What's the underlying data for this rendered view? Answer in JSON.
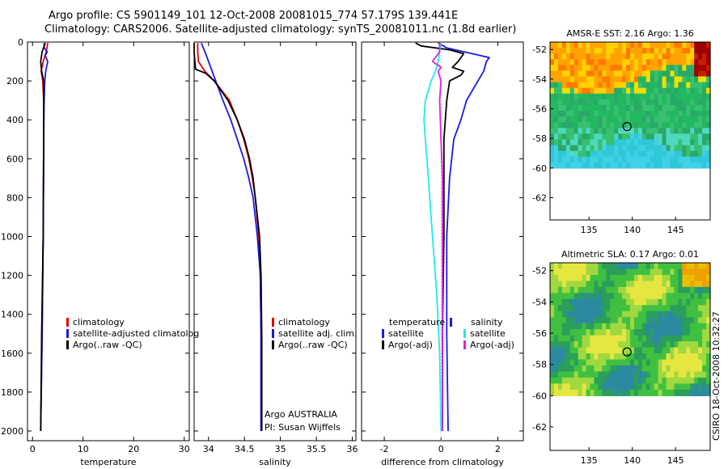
{
  "header": {
    "title_line1": "Argo profile: CS 5901149_101 12-Oct-2008 20081015_774 57.179S 139.441E",
    "title_line2": "Climatology: CARS2006. Satellite-adjusted climatology: synTS_20081011.nc (1.8d earlier)"
  },
  "colors": {
    "climatology": "#e60000",
    "satellite": "#1a1ae6",
    "argo": "#000000",
    "sal_satellite": "#22e8e8",
    "sal_argo": "#e020e0"
  },
  "footer": {
    "credit": "CSIRO 18-Oct-2008 10:32:27"
  },
  "chart_data": [
    {
      "id": "temperature",
      "type": "line",
      "xlabel": "temperature",
      "xlim": [
        -1,
        31
      ],
      "xticks": [
        "0",
        "10",
        "20",
        "30"
      ],
      "ylim": [
        2050,
        0
      ],
      "yticks": [
        "0",
        "200",
        "400",
        "600",
        "800",
        "1000",
        "1200",
        "1400",
        "1600",
        "1800",
        "2000"
      ],
      "legend": [
        "climatology",
        "satellite-adjusted climatolog",
        "Argo(..raw -QC)"
      ],
      "series": [
        {
          "name": "climatology",
          "depth": [
            5,
            50,
            100,
            150,
            200,
            300,
            500,
            1000,
            1500,
            2000
          ],
          "values": [
            3.0,
            2.7,
            2.1,
            1.7,
            2.0,
            2.2,
            2.2,
            2.1,
            1.9,
            1.6
          ]
        },
        {
          "name": "satellite-adjusted climatolog",
          "depth": [
            5,
            30,
            50,
            70,
            100,
            150,
            200,
            300,
            500,
            1000,
            1500,
            2000
          ],
          "values": [
            2.3,
            2.3,
            2.9,
            2.5,
            3.0,
            2.6,
            2.4,
            2.3,
            2.2,
            2.1,
            1.9,
            1.6
          ]
        },
        {
          "name": "Argo(..raw -QC)",
          "depth": [
            5,
            50,
            100,
            150,
            200,
            300,
            500,
            1000,
            1500,
            2000
          ],
          "values": [
            2.5,
            1.9,
            1.6,
            1.8,
            2.2,
            2.2,
            2.2,
            2.1,
            1.8,
            1.6
          ]
        }
      ]
    },
    {
      "id": "salinity",
      "type": "line",
      "xlabel": "salinity",
      "xlim": [
        33.8,
        36.05
      ],
      "xticks": [
        "34",
        "34.5",
        "35",
        "35.5",
        "36"
      ],
      "ylim": [
        2050,
        0
      ],
      "legend": [
        "climatology",
        "satellite adj. clim.",
        "Argo(..raw -QC)"
      ],
      "annotations": [
        "Argo AUSTRALIA",
        "PI: Susan Wijffels"
      ],
      "series": [
        {
          "name": "climatology",
          "depth": [
            5,
            50,
            100,
            150,
            200,
            300,
            400,
            500,
            600,
            700,
            800,
            1000,
            1200,
            1500,
            2000
          ],
          "values": [
            33.85,
            33.85,
            33.86,
            33.95,
            34.08,
            34.29,
            34.4,
            34.49,
            34.56,
            34.61,
            34.65,
            34.7,
            34.72,
            34.73,
            34.73
          ]
        },
        {
          "name": "satellite adj. clim.",
          "depth": [
            5,
            50,
            100,
            150,
            200,
            300,
            400,
            500,
            600,
            700,
            800,
            1000,
            1200,
            1500,
            2000
          ],
          "values": [
            33.9,
            33.95,
            34.0,
            34.05,
            34.1,
            34.2,
            34.31,
            34.4,
            34.49,
            34.56,
            34.62,
            34.68,
            34.72,
            34.73,
            34.73
          ]
        },
        {
          "name": "Argo(..raw -QC)",
          "depth": [
            5,
            50,
            100,
            140,
            160,
            200,
            300,
            400,
            500,
            600,
            700,
            800,
            1000,
            1200,
            1500,
            2000
          ],
          "values": [
            33.8,
            33.8,
            33.81,
            33.82,
            33.96,
            34.08,
            34.27,
            34.4,
            34.5,
            34.57,
            34.62,
            34.65,
            34.71,
            34.73,
            34.74,
            34.74
          ]
        }
      ]
    },
    {
      "id": "difference",
      "type": "line",
      "xlabel": "difference from climatology",
      "xlim": [
        -2.8,
        2.9
      ],
      "xticks": [
        "-2",
        "0",
        "2"
      ],
      "ylim": [
        2050,
        0
      ],
      "legend_left_title": "temperature",
      "legend_right_title": "salinity",
      "legend": [
        "satellite",
        "Argo(-adj)",
        "satellite",
        "Argo(-adj)"
      ],
      "series": [
        {
          "name": "temperature satellite",
          "depth": [
            5,
            30,
            60,
            80,
            100,
            150,
            200,
            300,
            400,
            500,
            700,
            1000,
            1500,
            2000
          ],
          "values": [
            -0.1,
            0.2,
            1.1,
            1.7,
            1.6,
            1.5,
            1.3,
            0.9,
            0.7,
            0.45,
            0.3,
            0.2,
            0.2,
            0.25
          ]
        },
        {
          "name": "temperature Argo(-adj)",
          "depth": [
            5,
            20,
            40,
            60,
            100,
            130,
            150,
            170,
            200,
            300,
            500,
            1000,
            1500,
            2000
          ],
          "values": [
            -0.9,
            -0.7,
            0.3,
            0.8,
            0.6,
            0.4,
            0.8,
            0.7,
            0.3,
            0.2,
            0.1,
            0.1,
            0.05,
            0.05
          ]
        },
        {
          "name": "salinity satellite",
          "depth": [
            5,
            100,
            150,
            200,
            250,
            300,
            400,
            500,
            700,
            1000,
            1300,
            1600,
            2000
          ],
          "values": [
            0.0,
            -0.1,
            -0.2,
            -0.35,
            -0.45,
            -0.55,
            -0.6,
            -0.55,
            -0.45,
            -0.3,
            -0.15,
            -0.05,
            0.0
          ]
        },
        {
          "name": "salinity Argo(-adj)",
          "depth": [
            5,
            50,
            100,
            130,
            150,
            200,
            300,
            500,
            700,
            1000,
            1500,
            2000
          ],
          "values": [
            -0.05,
            -0.05,
            -0.3,
            0.0,
            -0.1,
            0.0,
            -0.05,
            0.0,
            0.05,
            0.05,
            0.05,
            0.05
          ]
        }
      ]
    },
    {
      "id": "sst-map",
      "type": "heatmap",
      "title": "AMSR-E SST: 2.16 Argo: 1.36",
      "xticks": [
        "135",
        "140",
        "145"
      ],
      "yticks": [
        "-52",
        "-54",
        "-56",
        "-58",
        "-60",
        "-62"
      ],
      "xlim": [
        130.5,
        149
      ],
      "ylim": [
        -63.5,
        -51.5
      ],
      "data_ylim": [
        -60,
        -51.5
      ],
      "marker": {
        "lon": 139.4,
        "lat": -57.2
      }
    },
    {
      "id": "sla-map",
      "type": "heatmap",
      "title": "Altimetric SLA: 0.17 Argo: 0.01",
      "xticks": [
        "135",
        "140",
        "145"
      ],
      "yticks": [
        "-52",
        "-54",
        "-56",
        "-58",
        "-60",
        "-62"
      ],
      "xlim": [
        130.5,
        149
      ],
      "ylim": [
        -63.5,
        -51.5
      ],
      "data_ylim": [
        -60,
        -51.5
      ],
      "marker": {
        "lon": 139.4,
        "lat": -57.2
      }
    }
  ]
}
